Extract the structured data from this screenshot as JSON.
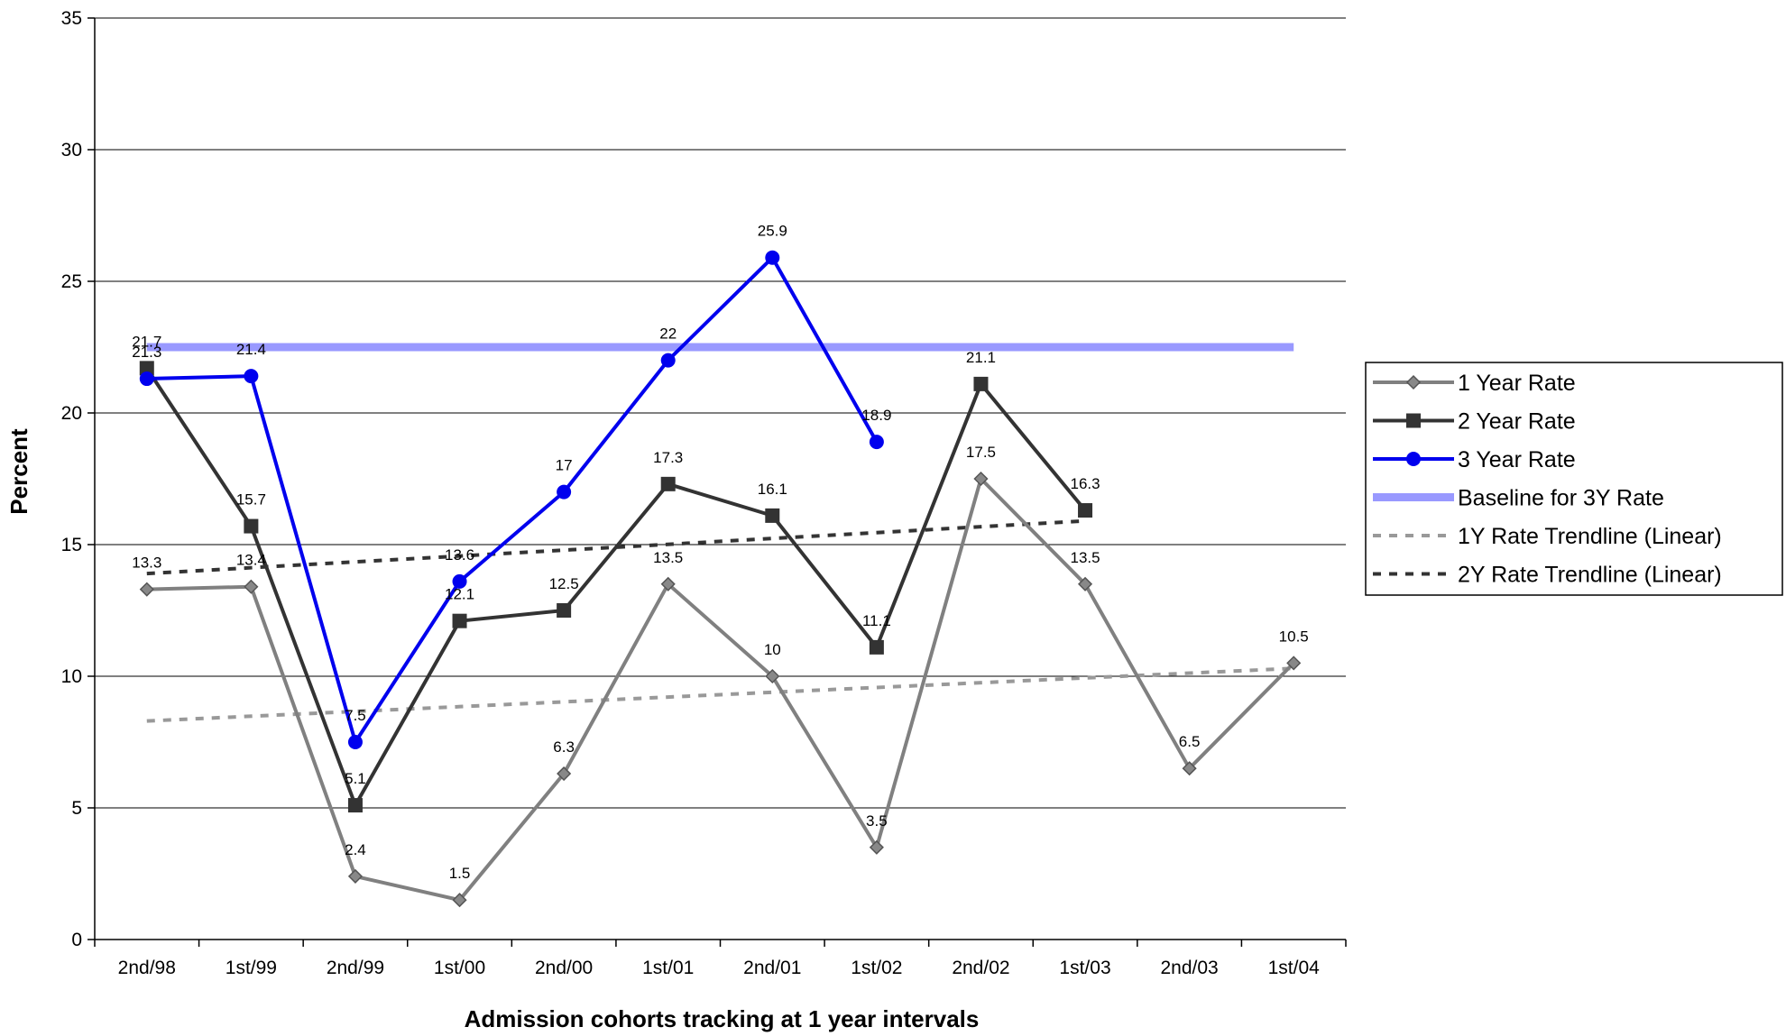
{
  "chart_data": {
    "type": "line",
    "xlabel": "Admission cohorts tracking at 1 year intervals",
    "ylabel": "Percent",
    "ylim": [
      0,
      35
    ],
    "yticks": [
      "0",
      "5",
      "10",
      "15",
      "20",
      "25",
      "30",
      "35"
    ],
    "grid": "horizontal",
    "legend_position": "right",
    "categories": [
      "2nd/98",
      "1st/99",
      "2nd/99",
      "1st/00",
      "2nd/00",
      "1st/01",
      "2nd/01",
      "1st/02",
      "2nd/02",
      "1st/03",
      "2nd/03",
      "1st/04"
    ],
    "series": [
      {
        "name": "1 Year Rate",
        "color": "#808080",
        "marker": "diamond",
        "values": [
          13.3,
          13.4,
          2.4,
          1.5,
          6.3,
          13.5,
          10,
          3.5,
          17.5,
          13.5,
          6.5,
          10.5
        ],
        "labels": [
          "13.3",
          "13.4",
          "2.4",
          "1.5",
          "6.3",
          "13.5",
          "10",
          "3.5",
          "17.5",
          "13.5",
          "6.5",
          "10.5"
        ]
      },
      {
        "name": "2 Year Rate",
        "color": "#333333",
        "marker": "square",
        "values": [
          21.7,
          15.7,
          5.1,
          12.1,
          12.5,
          17.3,
          16.1,
          11.1,
          21.1,
          16.3,
          null,
          null
        ],
        "labels": [
          "21.7",
          "15.7",
          "5.1",
          "12.1",
          "12.5",
          "17.3",
          "16.1",
          "11.1",
          "21.1",
          "16.3",
          "",
          ""
        ]
      },
      {
        "name": "3 Year Rate",
        "color": "#0000ee",
        "marker": "circle",
        "values": [
          21.3,
          21.4,
          7.5,
          13.6,
          17,
          22,
          25.9,
          18.9,
          null,
          null,
          null,
          null
        ],
        "labels": [
          "21.3",
          "21.4",
          "7.5",
          "13.6",
          "17",
          "22",
          "25.9",
          "18.9",
          "",
          "",
          "",
          ""
        ]
      }
    ],
    "baseline": {
      "name": "Baseline for 3Y Rate",
      "value": 22.5,
      "color": "#9999ff"
    },
    "trendlines": [
      {
        "name": "1Y Rate Trendline (Linear)",
        "color": "#999999",
        "start": 8.3,
        "end": 10.3,
        "to_category": 11
      },
      {
        "name": "2Y Rate Trendline (Linear)",
        "color": "#333333",
        "start": 13.9,
        "end": 15.9,
        "to_category": 9
      }
    ]
  }
}
